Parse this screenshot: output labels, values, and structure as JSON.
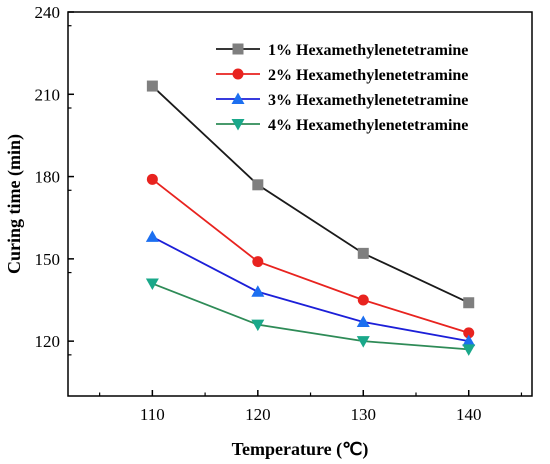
{
  "chart_data": {
    "type": "line",
    "x": [
      110,
      120,
      130,
      140
    ],
    "xlabel": "Temperature (℃)",
    "ylabel": "Curing time (min)",
    "xlim": [
      102,
      146
    ],
    "ylim": [
      100,
      240
    ],
    "xticks": [
      110,
      120,
      130,
      140
    ],
    "yticks": [
      120,
      150,
      180,
      210,
      240
    ],
    "legend_position": "top-right",
    "grid": false,
    "series": [
      {
        "name": "1% Hexamethylenetetramine",
        "values": [
          213,
          177,
          152,
          134
        ],
        "color": "#1a1a1a",
        "marker": "square",
        "marker_color": "#7f7f7f"
      },
      {
        "name": "2% Hexamethylenetetramine",
        "values": [
          179,
          149,
          135,
          123
        ],
        "color": "#e8231f",
        "marker": "circle",
        "marker_color": "#e8231f"
      },
      {
        "name": "3% Hexamethylenetetramine",
        "values": [
          158,
          138,
          127,
          120
        ],
        "color": "#1c1fd8",
        "marker": "triangle-up",
        "marker_color": "#1c6ff0"
      },
      {
        "name": "4% Hexamethylenetetramine",
        "values": [
          141,
          126,
          120,
          117
        ],
        "color": "#2e8b57",
        "marker": "triangle-down",
        "marker_color": "#1aa88a"
      }
    ]
  }
}
